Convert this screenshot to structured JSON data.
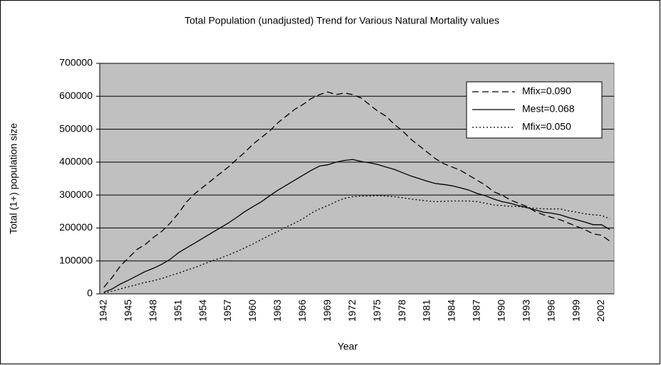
{
  "chart_data": {
    "type": "line",
    "title": "Total Population (unadjusted) Trend for Various Natural Mortality values",
    "x_label": "Year",
    "y_label": "Total (1+) population size",
    "categories": [
      "1942",
      null,
      null,
      "1945",
      null,
      null,
      "1948",
      null,
      null,
      "1951",
      null,
      null,
      "1954",
      null,
      null,
      "1957",
      null,
      null,
      "1960",
      null,
      null,
      "1963",
      null,
      null,
      "1966",
      null,
      null,
      "1969",
      null,
      null,
      "1972",
      null,
      null,
      "1975",
      null,
      null,
      "1978",
      null,
      null,
      "1981",
      null,
      null,
      "1984",
      null,
      null,
      "1987",
      null,
      null,
      "1990",
      null,
      null,
      "1993",
      null,
      null,
      "1996",
      null,
      null,
      "1999",
      null,
      null,
      "2002",
      null
    ],
    "ylim": [
      0,
      700000
    ],
    "yticks": [
      0,
      100000,
      200000,
      300000,
      400000,
      500000,
      600000,
      700000
    ],
    "grid": true,
    "plot_background": "#c0c0c0",
    "legend": "upper right",
    "series": [
      {
        "name": "Mfix=0.090",
        "color": "#000000",
        "dash": "dashed",
        "values": [
          20000,
          50000,
          85000,
          110000,
          135000,
          150000,
          172000,
          190000,
          215000,
          245000,
          280000,
          305000,
          325000,
          345000,
          365000,
          385000,
          408000,
          430000,
          455000,
          475000,
          495000,
          520000,
          540000,
          560000,
          575000,
          593000,
          605000,
          613000,
          605000,
          610000,
          605000,
          595000,
          575000,
          555000,
          540000,
          515000,
          495000,
          470000,
          450000,
          430000,
          410000,
          395000,
          385000,
          375000,
          360000,
          345000,
          330000,
          310000,
          300000,
          285000,
          275000,
          265000,
          250000,
          240000,
          232000,
          225000,
          215000,
          205000,
          195000,
          182000,
          178000,
          160000
        ]
      },
      {
        "name": "Mest=0.068",
        "color": "#000000",
        "dash": "solid",
        "values": [
          5000,
          15000,
          30000,
          42000,
          55000,
          68000,
          78000,
          90000,
          105000,
          125000,
          140000,
          155000,
          170000,
          185000,
          200000,
          215000,
          232000,
          250000,
          265000,
          280000,
          298000,
          315000,
          330000,
          345000,
          360000,
          375000,
          388000,
          392000,
          400000,
          405000,
          408000,
          402000,
          398000,
          393000,
          385000,
          378000,
          368000,
          358000,
          350000,
          342000,
          335000,
          332000,
          328000,
          322000,
          315000,
          305000,
          298000,
          288000,
          280000,
          275000,
          268000,
          262000,
          255000,
          248000,
          245000,
          240000,
          232000,
          225000,
          218000,
          210000,
          210000,
          195000
        ]
      },
      {
        "name": "Mfix=0.050",
        "color": "#000000",
        "dash": "dotted",
        "values": [
          3000,
          8000,
          15000,
          22000,
          28000,
          35000,
          40000,
          47000,
          55000,
          63000,
          72000,
          80000,
          90000,
          100000,
          108000,
          118000,
          128000,
          140000,
          152000,
          165000,
          178000,
          190000,
          203000,
          215000,
          228000,
          245000,
          258000,
          268000,
          280000,
          290000,
          295000,
          297000,
          297000,
          298000,
          297000,
          295000,
          292000,
          288000,
          285000,
          282000,
          280000,
          281000,
          282000,
          282000,
          282000,
          280000,
          275000,
          270000,
          268000,
          266000,
          265000,
          262000,
          260000,
          258000,
          258000,
          258000,
          252000,
          248000,
          243000,
          240000,
          238000,
          228000
        ]
      }
    ]
  }
}
